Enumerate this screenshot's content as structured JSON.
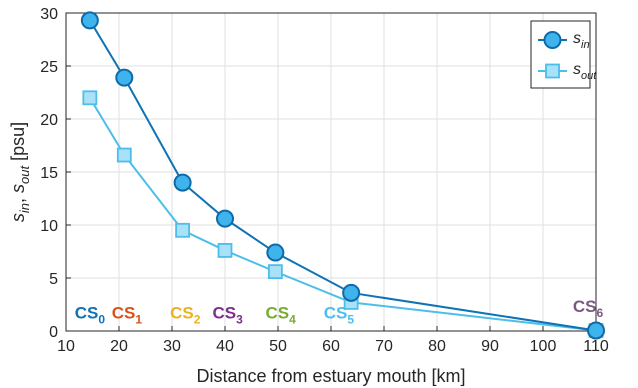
{
  "chart_data": {
    "type": "line",
    "xlabel": "Distance from estuary mouth [km]",
    "ylabel_parts": {
      "s1": "s",
      "sub1": "in",
      "sep": ", ",
      "s2": "s",
      "sub2": "out",
      "unit": " [psu]"
    },
    "xlim": [
      10,
      110
    ],
    "ylim": [
      0,
      30
    ],
    "x_ticks": [
      10,
      20,
      30,
      40,
      50,
      60,
      70,
      80,
      90,
      100,
      110
    ],
    "y_ticks": [
      0,
      5,
      10,
      15,
      20,
      25,
      30
    ],
    "grid": true,
    "legend_position": "top-right",
    "series": [
      {
        "name": "s_in",
        "label_main": "s",
        "label_sub": "in",
        "marker": "circle",
        "line_color": "#0e72b5",
        "marker_fill": "#3fb3eb",
        "marker_edge": "#0e6aa8",
        "x": [
          14.5,
          21,
          32,
          40,
          49.5,
          63.8,
          110
        ],
        "y": [
          29.3,
          23.9,
          14.0,
          10.6,
          7.4,
          3.6,
          0.05
        ]
      },
      {
        "name": "s_out",
        "label_main": "s",
        "label_sub": "out",
        "marker": "square",
        "line_color": "#4dbde9",
        "marker_fill": "#a9e2f8",
        "marker_edge": "#4dbde9",
        "x": [
          14.5,
          21,
          32,
          40,
          49.5,
          63.8,
          110
        ],
        "y": [
          22.0,
          16.6,
          9.5,
          7.6,
          5.6,
          2.7,
          0.05
        ]
      }
    ],
    "annotations": [
      {
        "main": "CS",
        "sub": "0",
        "x": 14.5,
        "y": 1.2,
        "color": "#0e72b5"
      },
      {
        "main": "CS",
        "sub": "1",
        "x": 21.5,
        "y": 1.2,
        "color": "#d95319"
      },
      {
        "main": "CS",
        "sub": "2",
        "x": 32.5,
        "y": 1.2,
        "color": "#edb120"
      },
      {
        "main": "CS",
        "sub": "3",
        "x": 40.5,
        "y": 1.2,
        "color": "#7e2f8e"
      },
      {
        "main": "CS",
        "sub": "4",
        "x": 50.5,
        "y": 1.2,
        "color": "#77ac30"
      },
      {
        "main": "CS",
        "sub": "5",
        "x": 61.5,
        "y": 1.2,
        "color": "#4dbeee"
      },
      {
        "main": "CS",
        "sub": "6",
        "x": 108.5,
        "y": 1.8,
        "color": "#7a5a82"
      }
    ]
  }
}
